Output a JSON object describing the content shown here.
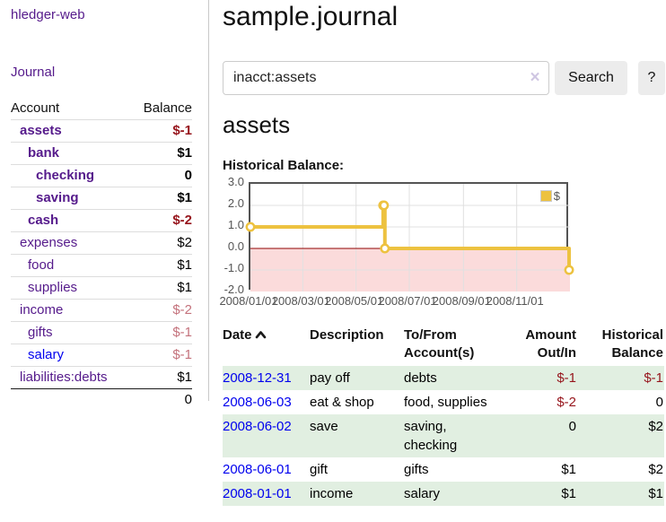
{
  "app": {
    "title": "hledger-web",
    "nav_journal": "Journal"
  },
  "sidebar": {
    "header": {
      "account": "Account",
      "balance": "Balance"
    },
    "accounts": [
      {
        "name": "assets",
        "level": 1,
        "bold": true,
        "balance": "$-1"
      },
      {
        "name": "bank",
        "level": 2,
        "bold": true,
        "balance": "$1"
      },
      {
        "name": "checking",
        "level": 3,
        "bold": true,
        "balance": "0"
      },
      {
        "name": "saving",
        "level": 3,
        "bold": true,
        "balance": "$1"
      },
      {
        "name": "cash",
        "level": 2,
        "bold": true,
        "balance": "$-2"
      },
      {
        "name": "expenses",
        "level": 1,
        "bold": false,
        "balance": "$2"
      },
      {
        "name": "food",
        "level": 2,
        "bold": false,
        "balance": "$1"
      },
      {
        "name": "supplies",
        "level": 2,
        "bold": false,
        "balance": "$1"
      },
      {
        "name": "income",
        "level": 1,
        "bold": false,
        "balance": "$-2"
      },
      {
        "name": "gifts",
        "level": 2,
        "bold": false,
        "balance": "$-1"
      },
      {
        "name": "salary",
        "level": 2,
        "bold": false,
        "balance": "$-1",
        "link_color": "blue"
      },
      {
        "name": "liabilities:debts",
        "level": 1,
        "bold": false,
        "balance": "$1"
      }
    ],
    "total": "0"
  },
  "header": {
    "title": "sample.journal"
  },
  "search": {
    "query": "inacct:assets",
    "clear_label": "×",
    "button_label": "Search",
    "help_label": "?"
  },
  "account_page": {
    "heading": "assets",
    "chart_label": "Historical Balance:"
  },
  "chart_data": {
    "type": "line",
    "step": true,
    "title": "Historical Balance",
    "series": [
      {
        "name": "$",
        "color": "#edc240",
        "points": [
          {
            "date": "2008-01-01",
            "day": 0,
            "value": 1
          },
          {
            "date": "2008-06-01",
            "day": 152,
            "value": 2
          },
          {
            "date": "2008-06-02",
            "day": 153,
            "value": 2
          },
          {
            "date": "2008-06-03",
            "day": 154,
            "value": 0
          },
          {
            "date": "2008-12-31",
            "day": 365,
            "value": -1
          }
        ]
      }
    ],
    "x_axis": {
      "span_days": 366,
      "ticks": [
        {
          "day": 0,
          "label": "2008/01/01"
        },
        {
          "day": 60,
          "label": "2008/03/01"
        },
        {
          "day": 121,
          "label": "2008/05/01"
        },
        {
          "day": 182,
          "label": "2008/07/01"
        },
        {
          "day": 244,
          "label": "2008/09/01"
        },
        {
          "day": 305,
          "label": "2008/11/01"
        }
      ]
    },
    "y_axis": {
      "min": -2,
      "max": 3,
      "ticks": [
        "3.0",
        "2.0",
        "1.0",
        "0.0",
        "-1.0",
        "-2.0"
      ]
    },
    "legend": {
      "position": "top-right",
      "label": "$"
    },
    "colors": {
      "line": "#edc240",
      "negative_region": "#fbdbdb",
      "zero_line": "#8f0000",
      "grid": "#e0e0e0",
      "plot_border": "#545454"
    }
  },
  "register": {
    "columns": {
      "date": "Date",
      "description": "Description",
      "accounts": "To/From Account(s)",
      "amount": "Amount Out/In",
      "balance": "Historical Balance"
    },
    "rows": [
      {
        "date": "2008-12-31",
        "description": "pay off",
        "accounts": "debts",
        "amount": "$-1",
        "balance": "$-1"
      },
      {
        "date": "2008-06-03",
        "description": "eat & shop",
        "accounts": "food, supplies",
        "amount": "$-2",
        "balance": "0"
      },
      {
        "date": "2008-06-02",
        "description": "save",
        "accounts": "saving, checking",
        "amount": "0",
        "balance": "$2"
      },
      {
        "date": "2008-06-01",
        "description": "gift",
        "accounts": "gifts",
        "amount": "$1",
        "balance": "$2"
      },
      {
        "date": "2008-01-01",
        "description": "income",
        "accounts": "salary",
        "amount": "$1",
        "balance": "$1"
      }
    ]
  }
}
